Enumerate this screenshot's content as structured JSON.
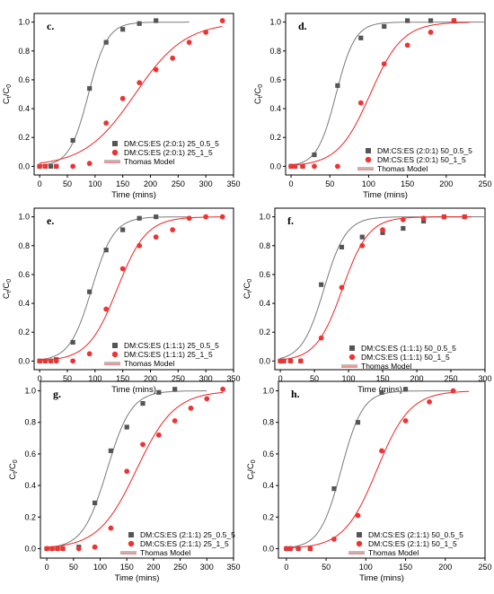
{
  "colors": {
    "gray": "#555555",
    "gray_line": "#7a7a7a",
    "red": "#ee3333",
    "red_line": "#ee2222"
  },
  "chart_data": [
    {
      "panel": "c.",
      "type": "scatter",
      "xlabel": "Time (mins)",
      "ylabel": "C",
      "xlim": [
        -10,
        350
      ],
      "ylim": [
        -0.06,
        1.06
      ],
      "xticks": [
        "0",
        "50",
        "100",
        "150",
        "200",
        "250",
        "300",
        "350"
      ],
      "yticks": [
        "0.0",
        "0.2",
        "0.4",
        "0.6",
        "0.8",
        "1.0"
      ],
      "legend": [
        "DM:CS:ES (2:0:1) 25_0.5_5",
        "DM:CS:ES (2:0:1) 25_1_5",
        "Thomas Model"
      ],
      "series": [
        {
          "name": "DM:CS:ES (2:0:1) 25_0.5_5",
          "x": [
            0,
            10,
            20,
            30,
            60,
            90,
            120,
            150,
            180,
            210
          ],
          "y": [
            0.0,
            0.0,
            0.0,
            0.0,
            0.18,
            0.54,
            0.86,
            0.95,
            0.99,
            1.01
          ]
        },
        {
          "name": "DM:CS:ES (2:0:1) 25_1_5",
          "x": [
            0,
            10,
            30,
            60,
            90,
            120,
            150,
            180,
            210,
            240,
            270,
            300,
            330
          ],
          "y": [
            0.0,
            0.0,
            0.0,
            0.0,
            0.02,
            0.3,
            0.47,
            0.58,
            0.67,
            0.75,
            0.86,
            0.93,
            1.01
          ]
        }
      ]
    },
    {
      "panel": "d.",
      "type": "scatter",
      "xlabel": "Time (mins)",
      "ylabel": "C",
      "xlim": [
        -7,
        250
      ],
      "ylim": [
        -0.06,
        1.06
      ],
      "xticks": [
        "0",
        "50",
        "100",
        "150",
        "200",
        "250"
      ],
      "yticks": [
        "0.0",
        "0.2",
        "0.4",
        "0.6",
        "0.8",
        "1.0"
      ],
      "legend": [
        "DM:CS:ES (2:0:1) 50_0.5_5",
        "DM:CS:ES (2:0:1) 50_1_5",
        "Thomas Model"
      ],
      "series": [
        {
          "name": "DM:CS:ES (2:0:1) 50_0.5_5",
          "x": [
            0,
            5,
            15,
            30,
            60,
            90,
            120,
            150,
            180,
            210
          ],
          "y": [
            0.0,
            0.0,
            0.0,
            0.08,
            0.56,
            0.89,
            0.97,
            1.01,
            1.01,
            1.01
          ]
        },
        {
          "name": "DM:CS:ES (2:0:1) 50_1_5",
          "x": [
            0,
            5,
            15,
            30,
            60,
            90,
            120,
            150,
            180,
            210
          ],
          "y": [
            0.0,
            0.0,
            0.0,
            0.0,
            0.0,
            0.44,
            0.71,
            0.84,
            0.93,
            1.01
          ]
        }
      ]
    },
    {
      "panel": "e.",
      "type": "scatter",
      "xlabel": "Time (mins)",
      "ylabel": "C",
      "xlim": [
        -10,
        350
      ],
      "ylim": [
        -0.06,
        1.06
      ],
      "xticks": [
        "0",
        "50",
        "100",
        "150",
        "200",
        "250",
        "300",
        "350"
      ],
      "yticks": [
        "0.0",
        "0.2",
        "0.4",
        "0.6",
        "0.8",
        "1.0"
      ],
      "legend": [
        "DM:CS:ES (1:1:1) 25_0.5_5",
        "DM:CS:ES (1:1:1) 25_1_5",
        "Thomas Model"
      ],
      "series": [
        {
          "name": "DM:CS:ES (1:1:1) 25_0.5_5",
          "x": [
            0,
            10,
            20,
            30,
            60,
            90,
            120,
            150,
            180,
            210
          ],
          "y": [
            0.0,
            0.0,
            0.0,
            0.01,
            0.13,
            0.48,
            0.77,
            0.91,
            0.99,
            1.0
          ]
        },
        {
          "name": "DM:CS:ES (1:1:1) 25_1_5",
          "x": [
            0,
            10,
            20,
            30,
            60,
            90,
            120,
            150,
            180,
            210,
            240,
            270,
            300,
            330
          ],
          "y": [
            0.0,
            0.0,
            0.0,
            0.0,
            0.0,
            0.05,
            0.36,
            0.64,
            0.8,
            0.86,
            0.91,
            0.99,
            1.0,
            1.0
          ]
        }
      ]
    },
    {
      "panel": "f.",
      "type": "scatter",
      "xlabel": "Time (mins)",
      "ylabel": "C",
      "xlim": [
        -8,
        300
      ],
      "ylim": [
        -0.06,
        1.06
      ],
      "xticks": [
        "0",
        "50",
        "100",
        "150",
        "200",
        "250",
        "300"
      ],
      "yticks": [
        "0.0",
        "0.2",
        "0.4",
        "0.6",
        "0.8",
        "1.0"
      ],
      "legend": [
        "DM:CS:ES (1:1:1) 50_0.5_5",
        "DM:CS:ES (1:1:1) 50_1_5",
        "Thomas Model"
      ],
      "series": [
        {
          "name": "DM:CS:ES (1:1:1) 50_0.5_5",
          "x": [
            0,
            5,
            15,
            30,
            60,
            90,
            120,
            150,
            180,
            210,
            240,
            270
          ],
          "y": [
            0.0,
            0.0,
            0.0,
            0.0,
            0.53,
            0.79,
            0.86,
            0.89,
            0.92,
            0.97,
            1.0,
            1.0
          ]
        },
        {
          "name": "DM:CS:ES (1:1:1) 50_1_5",
          "x": [
            0,
            5,
            15,
            30,
            60,
            90,
            120,
            150,
            180,
            210,
            240,
            270
          ],
          "y": [
            0.0,
            0.0,
            0.0,
            0.0,
            0.16,
            0.51,
            0.8,
            0.91,
            0.98,
            0.99,
            1.0,
            1.0
          ]
        }
      ]
    },
    {
      "panel": "g.",
      "type": "scatter",
      "xlabel": "Time (mins)",
      "ylabel": "C",
      "xlim": [
        -12,
        350
      ],
      "ylim": [
        -0.06,
        1.06
      ],
      "xticks": [
        "0",
        "50",
        "100",
        "150",
        "200",
        "250",
        "300",
        "350"
      ],
      "yticks": [
        "0.0",
        "0.2",
        "0.4",
        "0.6",
        "0.8",
        "1.0"
      ],
      "legend": [
        "DM:CS:ES (2:1:1) 25_0.5_5",
        "DM:CS:ES (2:1:1) 25_1_5",
        "Thomas Model"
      ],
      "series": [
        {
          "name": "DM:CS:ES (2:1:1) 25_0.5_5",
          "x": [
            0,
            10,
            20,
            30,
            60,
            90,
            120,
            150,
            180,
            210,
            240
          ],
          "y": [
            0.0,
            0.0,
            0.0,
            0.0,
            0.01,
            0.29,
            0.62,
            0.77,
            0.92,
            0.99,
            1.01
          ]
        },
        {
          "name": "DM:CS:ES (2:1:1) 25_1_5",
          "x": [
            0,
            10,
            20,
            30,
            60,
            90,
            120,
            150,
            180,
            210,
            240,
            270,
            300,
            330
          ],
          "y": [
            0.0,
            0.0,
            0.0,
            0.0,
            0.0,
            0.01,
            0.13,
            0.49,
            0.66,
            0.72,
            0.81,
            0.89,
            0.95,
            1.01
          ]
        }
      ]
    },
    {
      "panel": "h.",
      "type": "scatter",
      "xlabel": "Time (mins)",
      "ylabel": "C",
      "xlim": [
        -10,
        250
      ],
      "ylim": [
        -0.06,
        1.06
      ],
      "xticks": [
        "0",
        "50",
        "100",
        "150",
        "200",
        "250"
      ],
      "yticks": [
        "0.0",
        "0.2",
        "0.4",
        "0.6",
        "0.8",
        "1.0"
      ],
      "legend": [
        "DM:CS:ES (2:1:1) 50_0.5_5",
        "DM:CS:ES (2:1:1) 50_1_5",
        "Thomas Model"
      ],
      "series": [
        {
          "name": "DM:CS:ES (2:1:1) 50_0.5_5",
          "x": [
            0,
            5,
            15,
            30,
            60,
            90,
            120,
            150
          ],
          "y": [
            0.0,
            0.0,
            0.0,
            0.0,
            0.38,
            0.8,
            0.99,
            1.01
          ]
        },
        {
          "name": "DM:CS:ES (2:1:1) 50_1_5",
          "x": [
            0,
            5,
            15,
            30,
            60,
            90,
            120,
            150,
            180,
            210
          ],
          "y": [
            0.0,
            0.0,
            0.0,
            0.0,
            0.06,
            0.21,
            0.62,
            0.81,
            0.93,
            1.0
          ]
        }
      ]
    }
  ]
}
